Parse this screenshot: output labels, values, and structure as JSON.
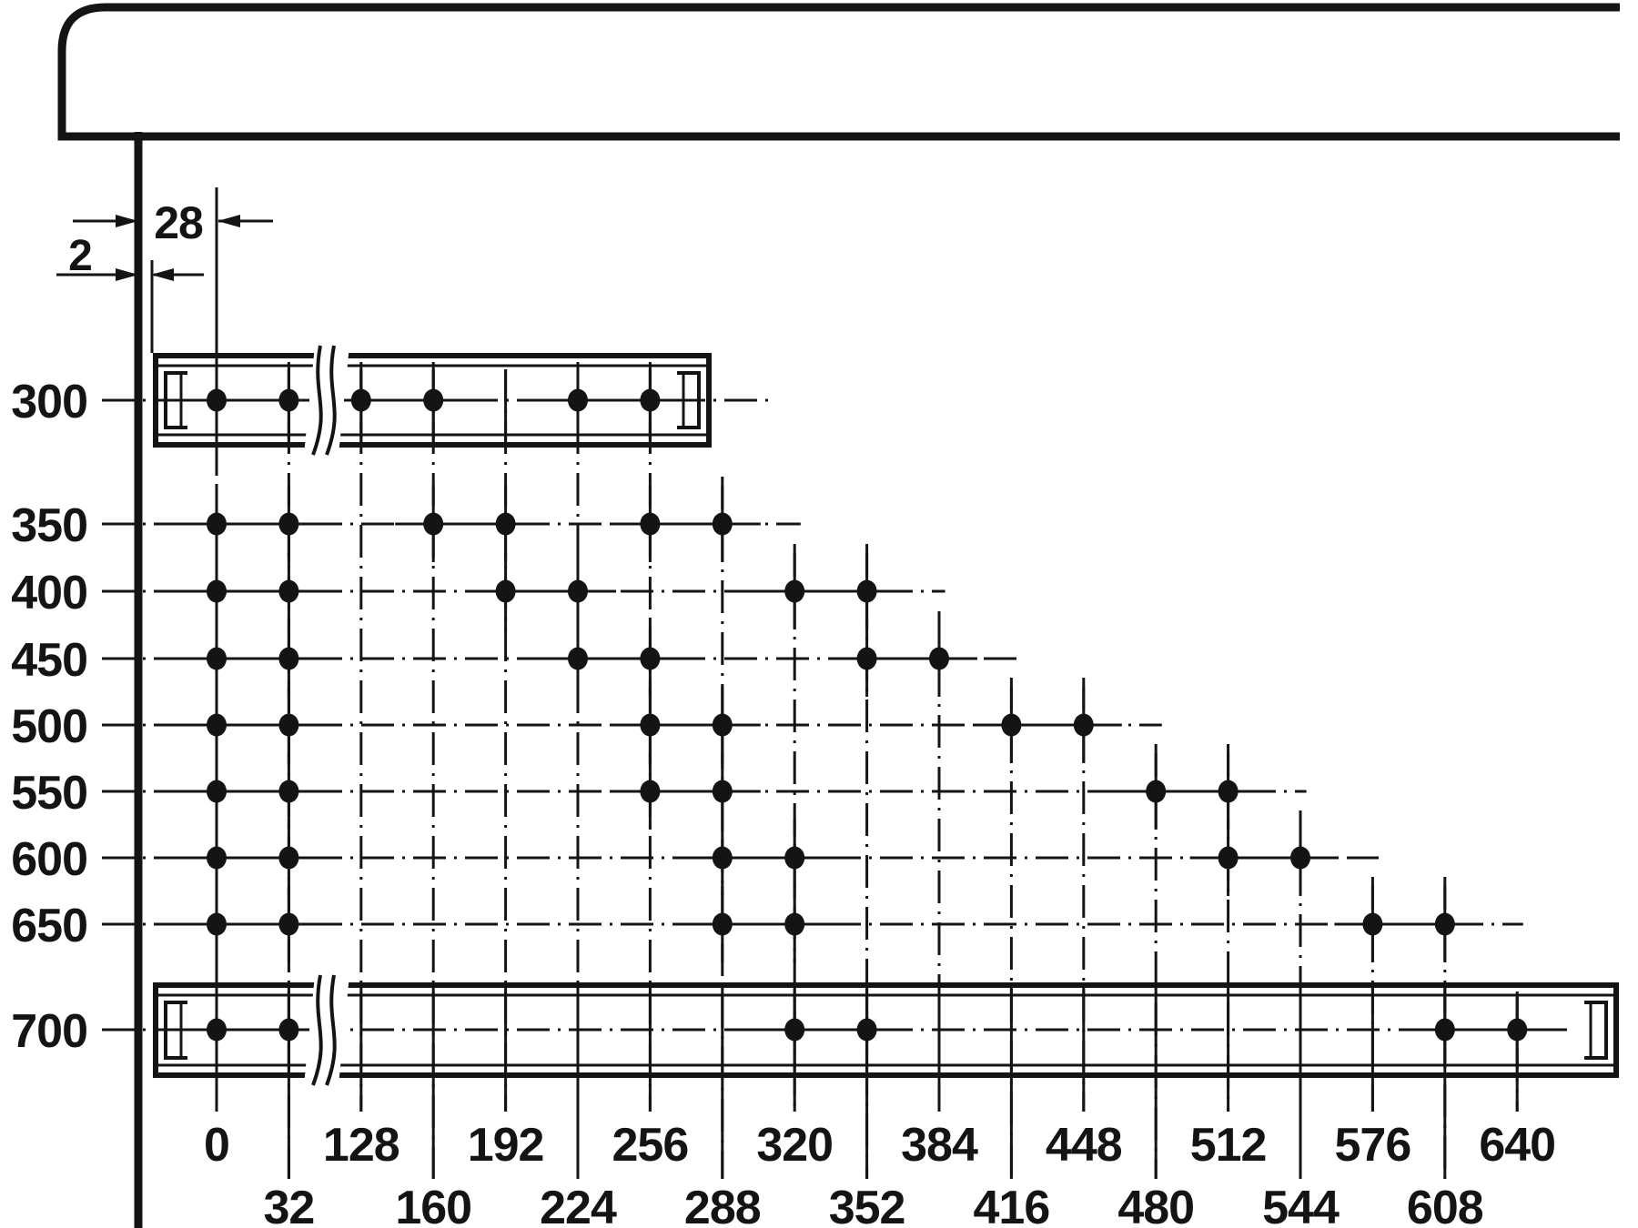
{
  "diagram": {
    "type": "technical-drawing",
    "subject": "Drawer runner screw fixing hole positions (32 mm system)",
    "units": "mm",
    "colors": {
      "ink": "#141414",
      "background": "#ffffff"
    },
    "dimension_annotations": {
      "front_offset_label": "28",
      "gap_label": "2"
    },
    "left_axis": {
      "values": [
        "300",
        "350",
        "400",
        "450",
        "500",
        "550",
        "600",
        "650",
        "700"
      ]
    },
    "bottom_axis": {
      "row1": [
        "0",
        "128",
        "192",
        "256",
        "320",
        "384",
        "448",
        "512",
        "576",
        "640"
      ],
      "row2": [
        "32",
        "160",
        "224",
        "288",
        "352",
        "416",
        "480",
        "544",
        "608"
      ]
    },
    "chart_data": {
      "type": "scatter",
      "x_label_values_mm": [
        0,
        32,
        128,
        160,
        192,
        224,
        256,
        288,
        320,
        352,
        384,
        416,
        448,
        480,
        512,
        544,
        576,
        608,
        640
      ],
      "y_label_values_mm": [
        300,
        350,
        400,
        450,
        500,
        550,
        600,
        650,
        700
      ],
      "x_break_between": [
        32,
        128
      ],
      "series": [
        {
          "length": "300",
          "holes": [
            0,
            32,
            128,
            160,
            224,
            256
          ],
          "drawn_as_rail": true
        },
        {
          "length": "350",
          "holes": [
            0,
            32,
            160,
            192,
            256,
            288
          ],
          "drawn_as_rail": false
        },
        {
          "length": "400",
          "holes": [
            0,
            32,
            192,
            224,
            320,
            352
          ],
          "drawn_as_rail": false
        },
        {
          "length": "450",
          "holes": [
            0,
            32,
            224,
            256,
            352,
            384
          ],
          "drawn_as_rail": false
        },
        {
          "length": "500",
          "holes": [
            0,
            32,
            256,
            288,
            416,
            448
          ],
          "drawn_as_rail": false
        },
        {
          "length": "550",
          "holes": [
            0,
            32,
            256,
            288,
            480,
            512
          ],
          "drawn_as_rail": false
        },
        {
          "length": "600",
          "holes": [
            0,
            32,
            288,
            320,
            512,
            544
          ],
          "drawn_as_rail": false
        },
        {
          "length": "650",
          "holes": [
            0,
            32,
            288,
            320,
            576,
            608
          ],
          "drawn_as_rail": false
        },
        {
          "length": "700",
          "holes": [
            0,
            32,
            320,
            352,
            608,
            640
          ],
          "drawn_as_rail": true
        }
      ]
    }
  }
}
